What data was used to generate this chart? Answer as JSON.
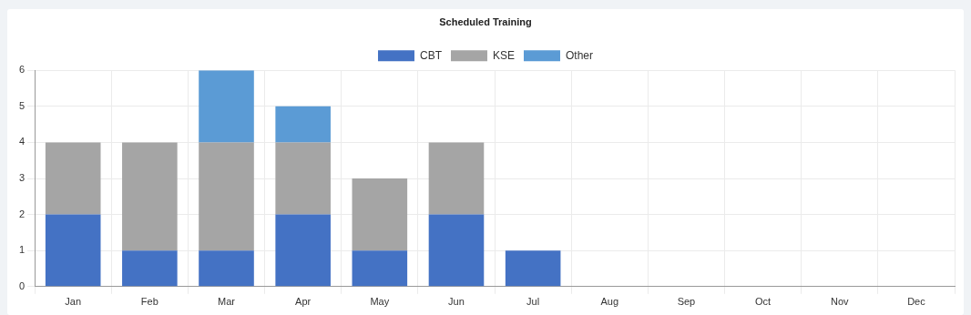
{
  "chart_data": {
    "type": "bar",
    "title": "Scheduled Training",
    "stacked": true,
    "grid": true,
    "legend": "top",
    "categories": [
      "Jan",
      "Feb",
      "Mar",
      "Apr",
      "May",
      "Jun",
      "Jul",
      "Aug",
      "Sep",
      "Oct",
      "Nov",
      "Dec"
    ],
    "series": [
      {
        "name": "CBT",
        "color": "#4472c4",
        "values": [
          2,
          1,
          1,
          2,
          1,
          2,
          1,
          0,
          0,
          0,
          0,
          0
        ]
      },
      {
        "name": "KSE",
        "color": "#a5a5a5",
        "values": [
          2,
          3,
          3,
          2,
          2,
          2,
          0,
          0,
          0,
          0,
          0,
          0
        ]
      },
      {
        "name": "Other",
        "color": "#5b9bd5",
        "values": [
          0,
          0,
          2,
          1,
          0,
          0,
          0,
          0,
          0,
          0,
          0,
          0
        ]
      }
    ],
    "ylim": [
      0,
      6
    ],
    "yticks": [
      0,
      1,
      2,
      3,
      4,
      5,
      6
    ]
  }
}
